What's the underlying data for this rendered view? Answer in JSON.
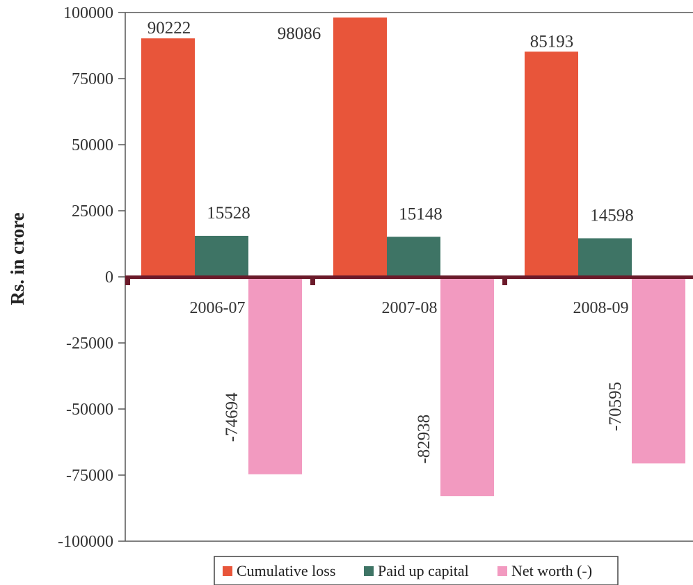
{
  "chart_data": {
    "type": "bar",
    "categories": [
      "2006-07",
      "2007-08",
      "2008-09"
    ],
    "series": [
      {
        "name": "Cumulative loss",
        "values": [
          90222,
          98086,
          85193
        ],
        "color": "#e8553a"
      },
      {
        "name": "Paid up capital",
        "values": [
          15528,
          15148,
          14598
        ],
        "color": "#3e7465"
      },
      {
        "name": "Net worth (-)",
        "values": [
          -74694,
          -82938,
          -70595
        ],
        "color": "#f29ac0"
      }
    ],
    "title": "",
    "xlabel": "",
    "ylabel": "Rs. in crore",
    "ylim": [
      -100000,
      100000
    ],
    "yticks": [
      100000,
      75000,
      50000,
      25000,
      0,
      -25000,
      -50000,
      -75000,
      -100000
    ],
    "ytick_labels": [
      "100000",
      "75000",
      "50000",
      "25000",
      "0",
      "-25000",
      "-50000",
      "-75000",
      "-100000"
    ],
    "data_labels": {
      "Cumulative loss": [
        "90222",
        "98086",
        "85193"
      ],
      "Paid up capital": [
        "15528",
        "15148",
        "14598"
      ],
      "Net worth (-)": [
        "-74694",
        "-82938",
        "-70595"
      ]
    },
    "grid": false,
    "legend_position": "bottom",
    "zero_line_color": "#6b1a2a"
  }
}
